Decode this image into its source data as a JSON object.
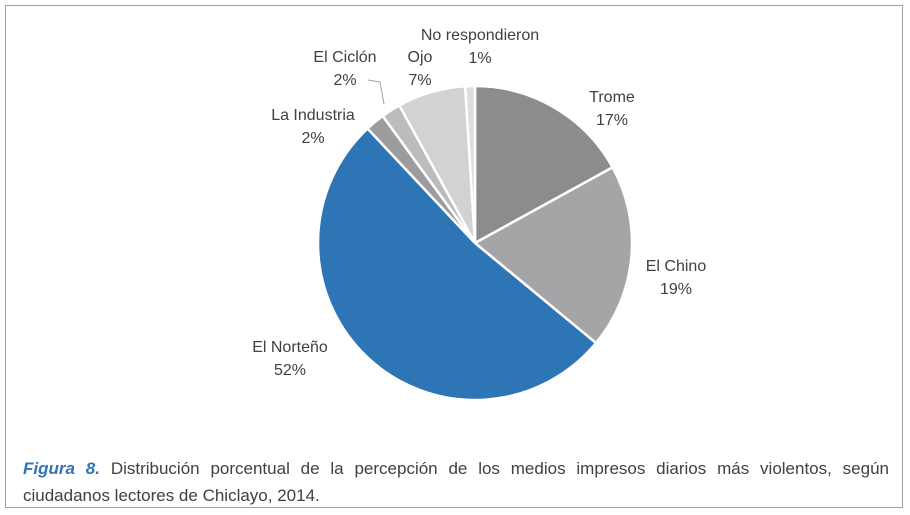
{
  "chart_data": {
    "type": "pie",
    "categories": [
      "Trome",
      "El Chino",
      "El Norteño",
      "La Industria",
      "El Ciclón",
      "Ojo",
      "No respondieron"
    ],
    "values": [
      17,
      19,
      52,
      2,
      2,
      7,
      1
    ],
    "value_labels": [
      "17%",
      "19%",
      "52%",
      "2%",
      "2%",
      "7%",
      "1%"
    ],
    "colors": [
      "#8c8c8f",
      "#a5a5a8",
      "#2e75b6",
      "#9c9c9e",
      "#bcbcbe",
      "#d2d2d4",
      "#dddde2"
    ],
    "caption_label": "Figura 8.",
    "caption": "Distribución porcentual de la percepción de los medios impresos diarios más violentos, según ciudadanos lectores de Chiclayo, 2014."
  }
}
